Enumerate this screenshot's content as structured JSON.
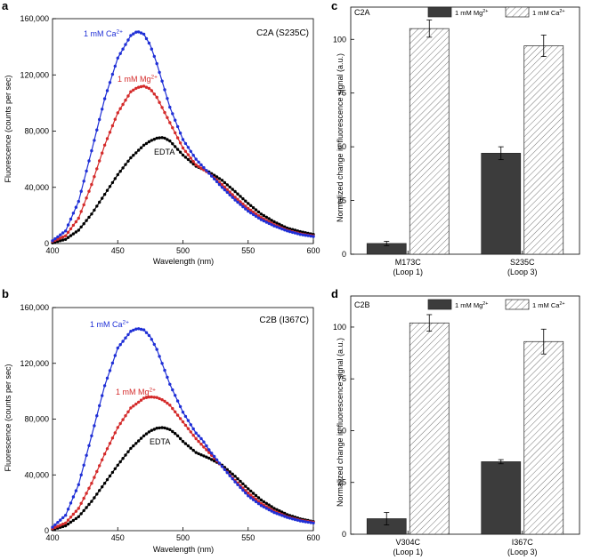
{
  "chart_data": [
    {
      "panel": "a",
      "type": "line",
      "title": "C2A (S235C)",
      "xlabel": "Wavelength (nm)",
      "ylabel": "Fluorescence (counts per sec)",
      "xlim": [
        400,
        600
      ],
      "ylim": [
        0,
        160000
      ],
      "xticks": [
        400,
        450,
        500,
        550,
        600
      ],
      "yticks": [
        0,
        40000,
        80000,
        120000,
        160000
      ],
      "ytick_labels": [
        "0",
        "40,000",
        "80,000",
        "120,000",
        "160,000"
      ],
      "series": [
        {
          "name": "1 mM Ca²⁺",
          "color": "#1f2fd6",
          "x": [
            400,
            410,
            420,
            430,
            440,
            450,
            460,
            465,
            470,
            475,
            480,
            490,
            500,
            510,
            515,
            520,
            525,
            530,
            540,
            550,
            560,
            570,
            580,
            590,
            600
          ],
          "y": [
            2000,
            9000,
            30000,
            66000,
            103000,
            132000,
            148000,
            151000,
            149000,
            141000,
            128000,
            97000,
            74000,
            60000,
            55000,
            50000,
            45000,
            40000,
            31000,
            23000,
            17000,
            12500,
            9000,
            6500,
            5000
          ]
        },
        {
          "name": "1 mM Mg²⁺",
          "color": "#d42a2a",
          "x": [
            400,
            410,
            420,
            430,
            440,
            450,
            460,
            465,
            470,
            475,
            480,
            490,
            500,
            510,
            515,
            520,
            525,
            530,
            540,
            550,
            560,
            570,
            580,
            590,
            600
          ],
          "y": [
            1500,
            5500,
            18000,
            42000,
            70000,
            93000,
            108000,
            111000,
            112000,
            110000,
            104000,
            86000,
            68000,
            56000,
            53000,
            50000,
            46000,
            42000,
            33000,
            25000,
            18500,
            13500,
            9500,
            7000,
            5500
          ]
        },
        {
          "name": "EDTA",
          "color": "#000000",
          "x": [
            400,
            410,
            420,
            430,
            440,
            450,
            460,
            470,
            475,
            480,
            485,
            490,
            495,
            500,
            510,
            515,
            520,
            530,
            540,
            550,
            560,
            570,
            580,
            590,
            600
          ],
          "y": [
            500,
            3000,
            9500,
            21000,
            35000,
            49000,
            61000,
            70000,
            73000,
            75000,
            75500,
            73000,
            68000,
            63000,
            55000,
            53000,
            51000,
            45000,
            37000,
            28500,
            21000,
            15500,
            11000,
            8500,
            6500
          ]
        }
      ],
      "annotations": [
        {
          "text": "1 mM Ca",
          "sup": "2+"
        },
        {
          "text": "1 mM Mg",
          "sup": "2+"
        },
        {
          "text": "EDTA"
        }
      ]
    },
    {
      "panel": "b",
      "type": "line",
      "title": "C2B (I367C)",
      "xlabel": "Wavelength (nm)",
      "ylabel": "Fluorescence (counts per sec)",
      "xlim": [
        400,
        600
      ],
      "ylim": [
        0,
        160000
      ],
      "xticks": [
        400,
        450,
        500,
        550,
        600
      ],
      "yticks": [
        0,
        40000,
        80000,
        120000,
        160000
      ],
      "ytick_labels": [
        "0",
        "40,000",
        "80,000",
        "120,000",
        "160,000"
      ],
      "series": [
        {
          "name": "1 mM Ca²⁺",
          "color": "#1f2fd6",
          "x": [
            400,
            410,
            420,
            430,
            440,
            450,
            460,
            465,
            470,
            475,
            480,
            490,
            500,
            510,
            515,
            520,
            525,
            530,
            540,
            550,
            560,
            570,
            580,
            590,
            600
          ],
          "y": [
            2500,
            11000,
            33000,
            68000,
            104000,
            131000,
            143000,
            145000,
            144000,
            139000,
            130000,
            105000,
            85000,
            70000,
            65000,
            58000,
            52000,
            46000,
            35000,
            25000,
            18000,
            13000,
            9500,
            7000,
            5500
          ]
        },
        {
          "name": "1 mM Mg²⁺",
          "color": "#d42a2a",
          "x": [
            400,
            410,
            420,
            430,
            440,
            450,
            460,
            470,
            475,
            480,
            485,
            490,
            500,
            510,
            515,
            520,
            525,
            530,
            540,
            550,
            560,
            570,
            580,
            590,
            600
          ],
          "y": [
            1500,
            5500,
            16000,
            34000,
            55000,
            74000,
            88000,
            95000,
            96000,
            95500,
            93500,
            90000,
            78000,
            66000,
            61000,
            56000,
            51000,
            46000,
            36000,
            27000,
            19500,
            14000,
            10000,
            7500,
            6000
          ]
        },
        {
          "name": "EDTA",
          "color": "#000000",
          "x": [
            400,
            410,
            420,
            430,
            440,
            450,
            460,
            470,
            475,
            480,
            485,
            490,
            495,
            500,
            510,
            515,
            520,
            530,
            540,
            550,
            560,
            570,
            580,
            590,
            600
          ],
          "y": [
            800,
            3500,
            10000,
            21000,
            34000,
            47000,
            59000,
            68000,
            71500,
            73500,
            74000,
            72500,
            69000,
            64000,
            56000,
            54000,
            52000,
            47000,
            39000,
            30000,
            22000,
            16000,
            11500,
            8500,
            6500
          ]
        }
      ],
      "annotations": [
        {
          "text": "1 mM Ca",
          "sup": "2+"
        },
        {
          "text": "1 mM Mg",
          "sup": "2+"
        },
        {
          "text": "EDTA"
        }
      ]
    },
    {
      "panel": "c",
      "type": "bar",
      "title": "C2A",
      "ylabel": "Normalized change in fluorescence signal (a.u.)",
      "ylim": [
        0,
        115
      ],
      "yticks": [
        0,
        25,
        50,
        75,
        100
      ],
      "categories": [
        {
          "line1": "M173C",
          "line2": "(Loop 1)"
        },
        {
          "line1": "S235C",
          "line2": "(Loop 3)"
        }
      ],
      "series": [
        {
          "name": "1 mM Mg",
          "sup": "2+",
          "style": "solid",
          "color": "#3c3c3c",
          "values": [
            5,
            47
          ],
          "errors": [
            1,
            3
          ]
        },
        {
          "name": "1 mM Ca",
          "sup": "2+",
          "style": "hatched",
          "color": "#ffffff",
          "values": [
            105,
            97
          ],
          "errors": [
            4,
            5
          ]
        }
      ]
    },
    {
      "panel": "d",
      "type": "bar",
      "title": "C2B",
      "ylabel": "Normalized change in fluorescence signal (a.u.)",
      "ylim": [
        0,
        115
      ],
      "yticks": [
        0,
        25,
        50,
        75,
        100
      ],
      "categories": [
        {
          "line1": "V304C",
          "line2": "(Loop 1)"
        },
        {
          "line1": "I367C",
          "line2": "(Loop 3)"
        }
      ],
      "series": [
        {
          "name": "1 mM Mg",
          "sup": "2+",
          "style": "solid",
          "color": "#3c3c3c",
          "values": [
            7.5,
            35
          ],
          "errors": [
            3,
            1
          ]
        },
        {
          "name": "1 mM Ca",
          "sup": "2+",
          "style": "hatched",
          "color": "#ffffff",
          "values": [
            102,
            93
          ],
          "errors": [
            4,
            6
          ]
        }
      ]
    }
  ]
}
